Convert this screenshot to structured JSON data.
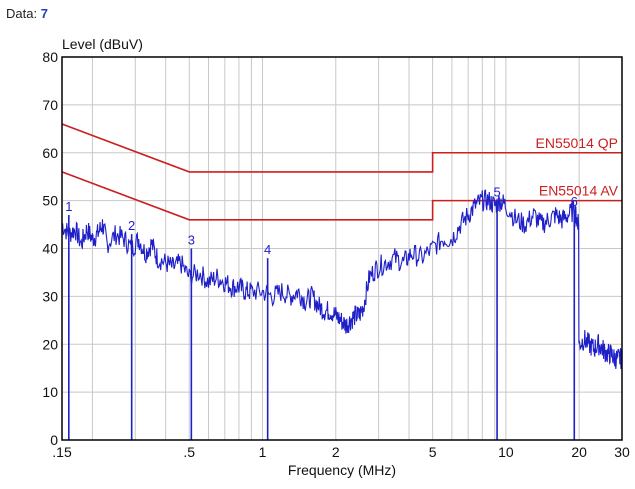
{
  "header": {
    "label": "Data:",
    "value": "7"
  },
  "colors": {
    "trace": "#1f1fc8",
    "limit": "#cc1f1f",
    "grid": "#c8c8c8",
    "frame": "#000000"
  },
  "chart_data": {
    "type": "line",
    "ylabel": "Level (dBuV)",
    "xlabel": "Frequency (MHz)",
    "xscale": "log",
    "xlim": [
      0.15,
      30
    ],
    "ylim": [
      0,
      80
    ],
    "x_ticks": [
      {
        "value": 0.15,
        "label": ".15"
      },
      {
        "value": 0.5,
        "label": ".5"
      },
      {
        "value": 1,
        "label": "1"
      },
      {
        "value": 2,
        "label": "2"
      },
      {
        "value": 5,
        "label": "5"
      },
      {
        "value": 10,
        "label": "10"
      },
      {
        "value": 20,
        "label": "20"
      },
      {
        "value": 30,
        "label": "30"
      }
    ],
    "y_ticks": [
      0,
      10,
      20,
      30,
      40,
      50,
      60,
      70,
      80
    ],
    "limits": [
      {
        "name": "EN55014 QP",
        "points": [
          [
            0.15,
            66
          ],
          [
            0.5,
            56
          ],
          [
            5,
            56
          ],
          [
            5,
            60
          ],
          [
            30,
            60
          ]
        ]
      },
      {
        "name": "EN55014 AV",
        "points": [
          [
            0.15,
            56
          ],
          [
            0.5,
            46
          ],
          [
            5,
            46
          ],
          [
            5,
            50
          ],
          [
            30,
            50
          ]
        ]
      }
    ],
    "series": [
      {
        "x": [
          0.15,
          0.16,
          0.17,
          0.18,
          0.19,
          0.2,
          0.21,
          0.22,
          0.23,
          0.25,
          0.27,
          0.29,
          0.31,
          0.33,
          0.35,
          0.37,
          0.4,
          0.43,
          0.46,
          0.5,
          0.55,
          0.6,
          0.65,
          0.7,
          0.75,
          0.8,
          0.85,
          0.9,
          1.0,
          1.1,
          1.2,
          1.3,
          1.4,
          1.5,
          1.6,
          1.7,
          1.8,
          1.9,
          2.0,
          2.1,
          2.2,
          2.3,
          2.4,
          2.5,
          2.6,
          2.75,
          2.95,
          3.2,
          3.5,
          3.8,
          4.1,
          4.5,
          5.0,
          5.5,
          6.0,
          6.5,
          7.0,
          7.5,
          8.0,
          8.5,
          9.0,
          9.5,
          10,
          11,
          12,
          13,
          14,
          15,
          16,
          17,
          18,
          19.2,
          19.5,
          20,
          21,
          22,
          23,
          24,
          25,
          26,
          27,
          28,
          29,
          30
        ],
        "y": [
          45,
          43,
          44,
          41,
          44,
          42,
          43,
          45,
          41,
          43,
          42,
          40,
          42,
          39,
          41,
          38,
          37,
          36,
          37,
          34,
          35,
          33,
          34,
          33,
          32,
          32,
          31,
          31,
          31,
          30,
          31,
          30,
          31,
          29,
          30,
          28,
          27,
          27,
          26,
          25,
          24,
          25,
          26,
          26,
          28,
          34,
          36,
          37,
          38,
          37,
          39,
          38,
          40,
          42,
          42,
          45,
          47,
          49,
          50,
          50,
          49,
          50,
          49,
          46,
          45,
          47,
          45,
          46,
          47,
          46,
          47,
          48,
          46,
          20,
          21,
          20,
          19,
          20,
          19,
          18,
          18,
          17,
          17,
          17
        ]
      }
    ],
    "markers": [
      {
        "label": "1",
        "x": 0.16,
        "y": 47
      },
      {
        "label": "2",
        "x": 0.29,
        "y": 43
      },
      {
        "label": "3",
        "x": 0.51,
        "y": 40
      },
      {
        "label": "4",
        "x": 1.05,
        "y": 38
      },
      {
        "label": "5",
        "x": 9.2,
        "y": 50
      },
      {
        "label": "6",
        "x": 19.1,
        "y": 48
      }
    ]
  }
}
